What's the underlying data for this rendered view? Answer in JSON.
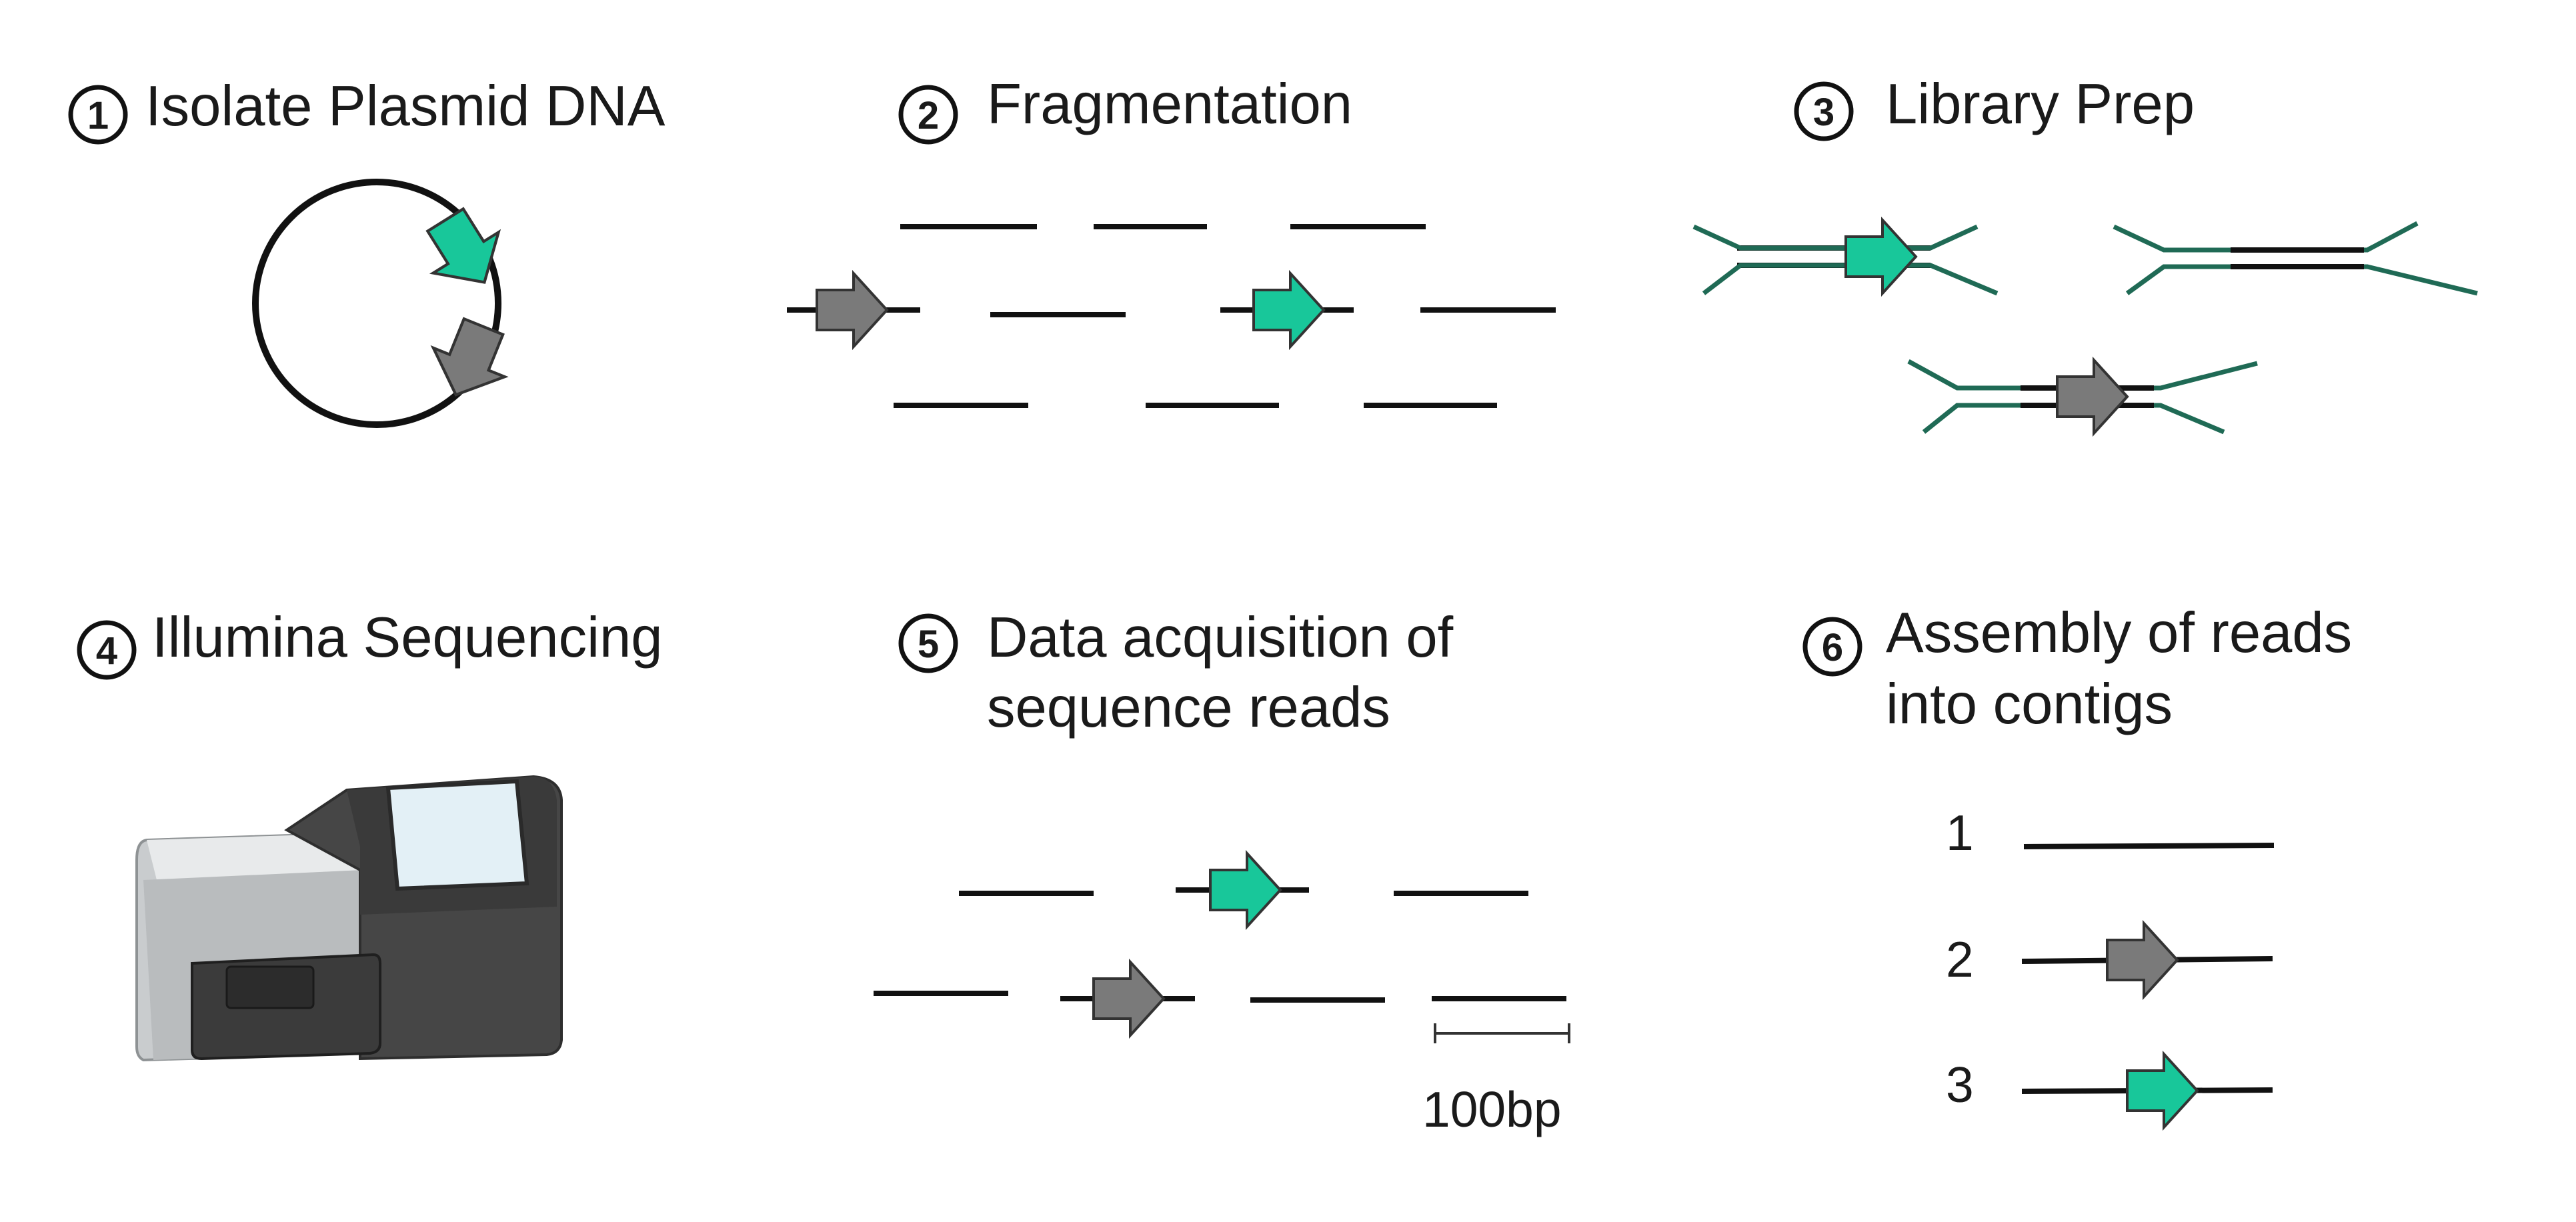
{
  "steps": [
    {
      "number": "1",
      "title": "Isolate Plasmid DNA"
    },
    {
      "number": "2",
      "title": "Fragmentation"
    },
    {
      "number": "3",
      "title": "Library Prep"
    },
    {
      "number": "4",
      "title": "Illumina Sequencing"
    },
    {
      "number": "5",
      "title_line1": "Data acquisition of",
      "title_line2": "sequence reads"
    },
    {
      "number": "6",
      "title_line1": "Assembly of reads",
      "title_line2": "into contigs"
    }
  ],
  "scale_bar": {
    "label": "100bp"
  },
  "contigs": [
    "1",
    "2",
    "3"
  ],
  "colors": {
    "green_gene": "#18c79a",
    "gray_gene": "#7a7a7a",
    "adapter": "#1f6a55",
    "strand": "#111111"
  }
}
